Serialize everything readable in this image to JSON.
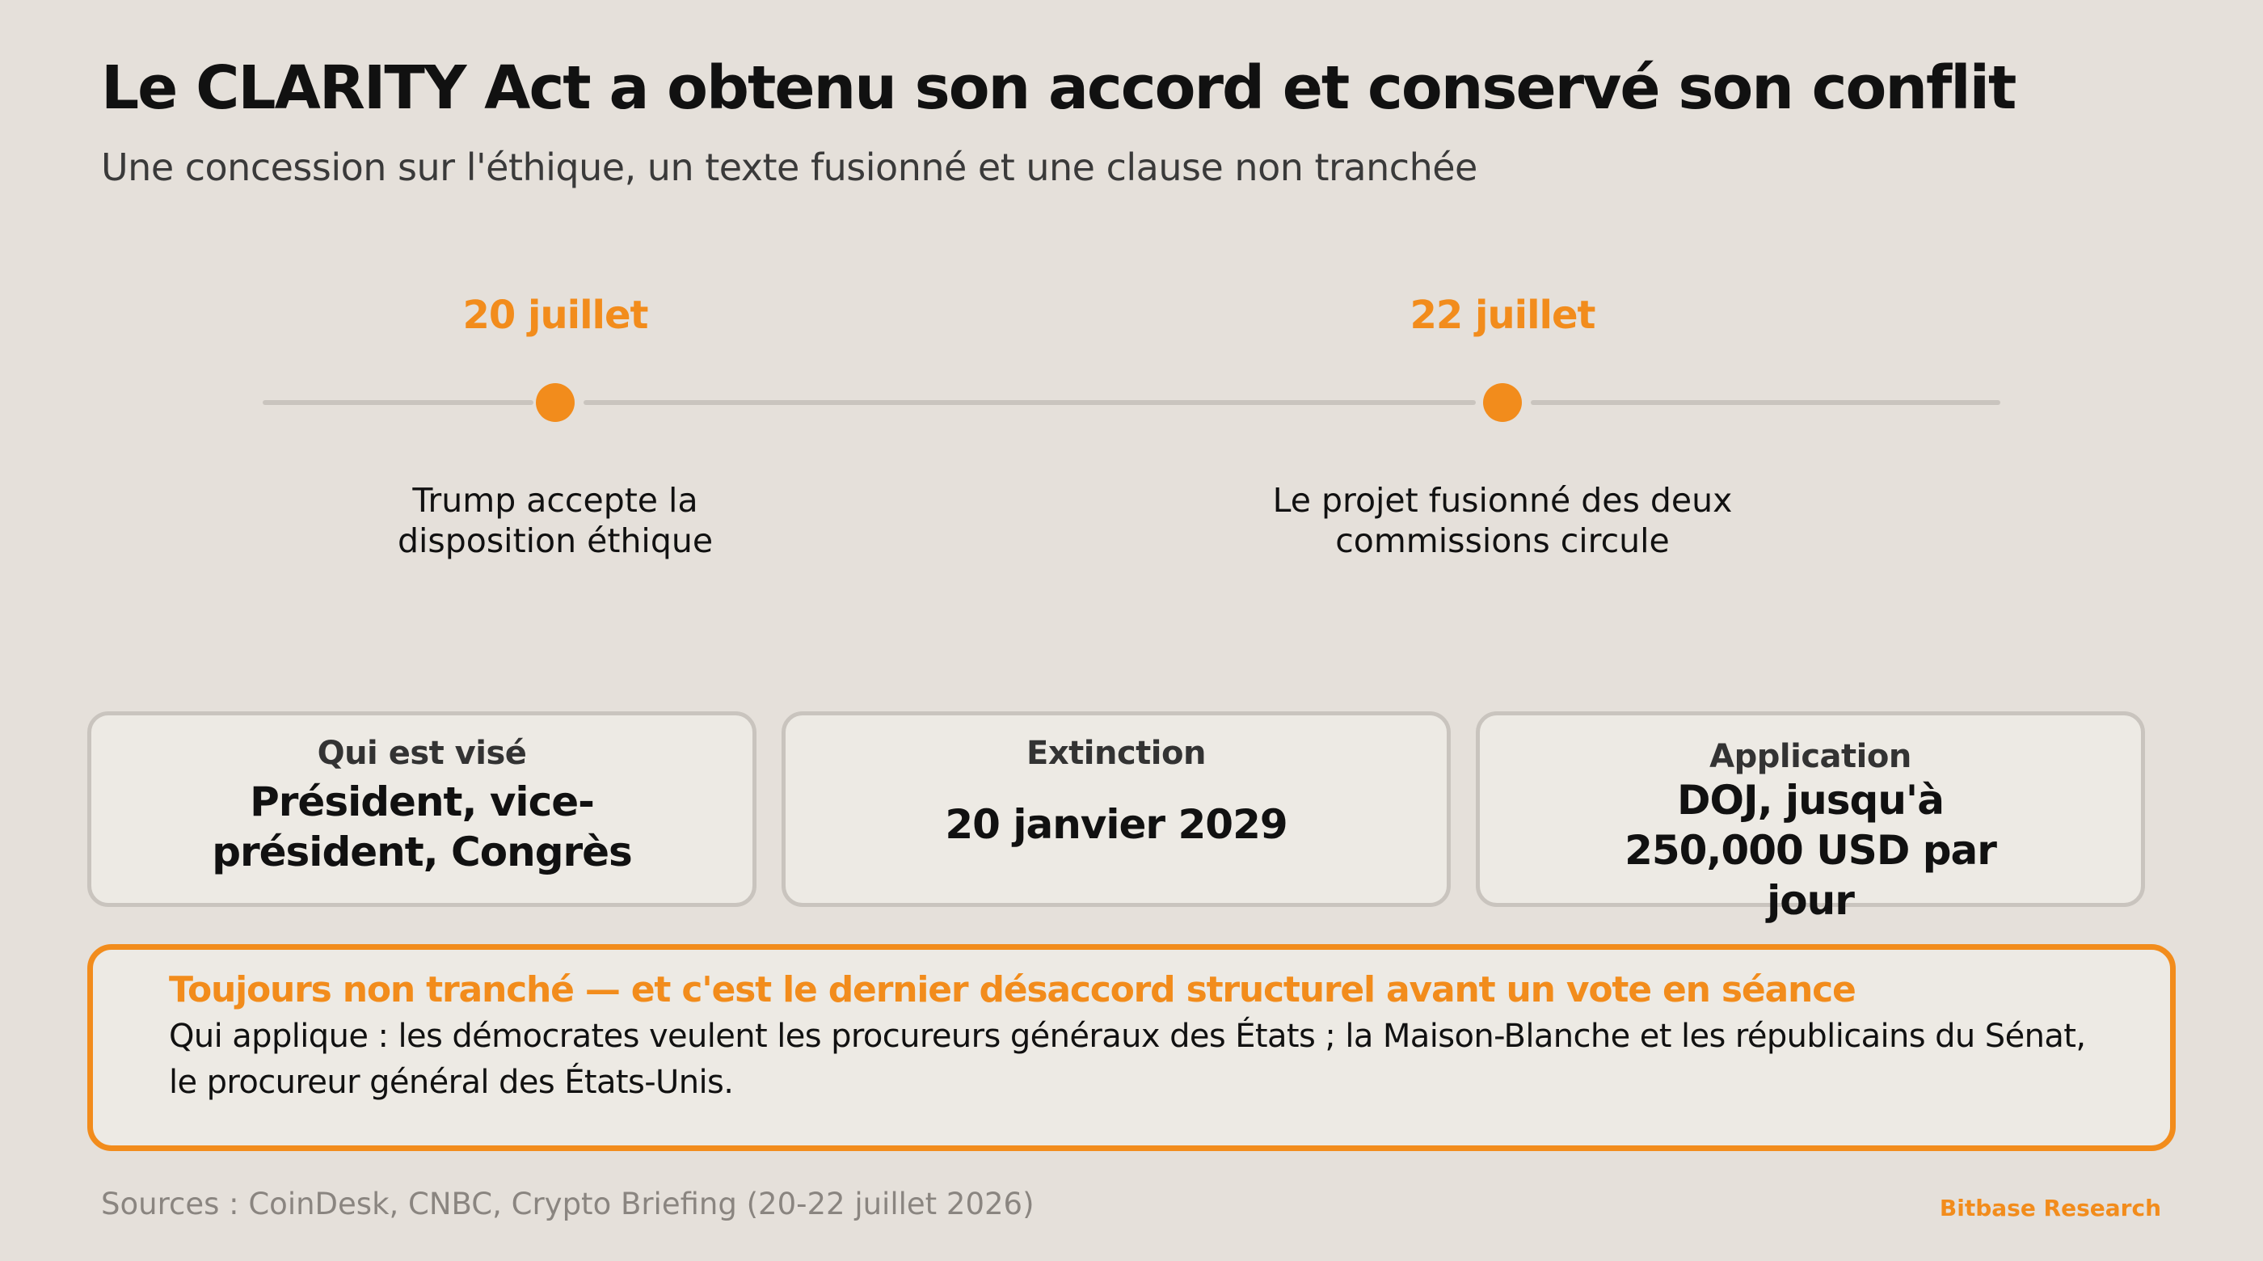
{
  "header": {
    "title": "Le CLARITY Act a obtenu son accord et conservé son conflit",
    "subtitle": "Une concession sur l'éthique, un texte fusionné et une clause non tranchée"
  },
  "timeline": {
    "events": [
      {
        "date": "20 juillet",
        "description": "Trump accepte la disposition éthique"
      },
      {
        "date": "22 juillet",
        "description": "Le projet fusionné des deux commissions circule"
      }
    ]
  },
  "cards": [
    {
      "label": "Qui est visé",
      "value": "Président, vice-président, Congrès"
    },
    {
      "label": "Extinction",
      "value": "20 janvier 2029"
    },
    {
      "label": "Application",
      "value": "DOJ, jusqu'à 250,000 USD par jour"
    }
  ],
  "callout": {
    "title": "Toujours non tranché — et c'est le dernier désaccord structurel avant un vote en séance",
    "body": "Qui applique : les démocrates veulent les procureurs généraux des États ; la Maison-Blanche et les républicains du Sénat, le procureur général des États-Unis."
  },
  "footer": {
    "sources": "Sources : CoinDesk, CNBC, Crypto Briefing (20-22 juillet 2026)",
    "brand": "Bitbase Research"
  },
  "colors": {
    "background": "#e5e0da",
    "accent": "#f28c1c",
    "card_border": "#c9c4be",
    "timeline_line": "#c9c4be"
  }
}
